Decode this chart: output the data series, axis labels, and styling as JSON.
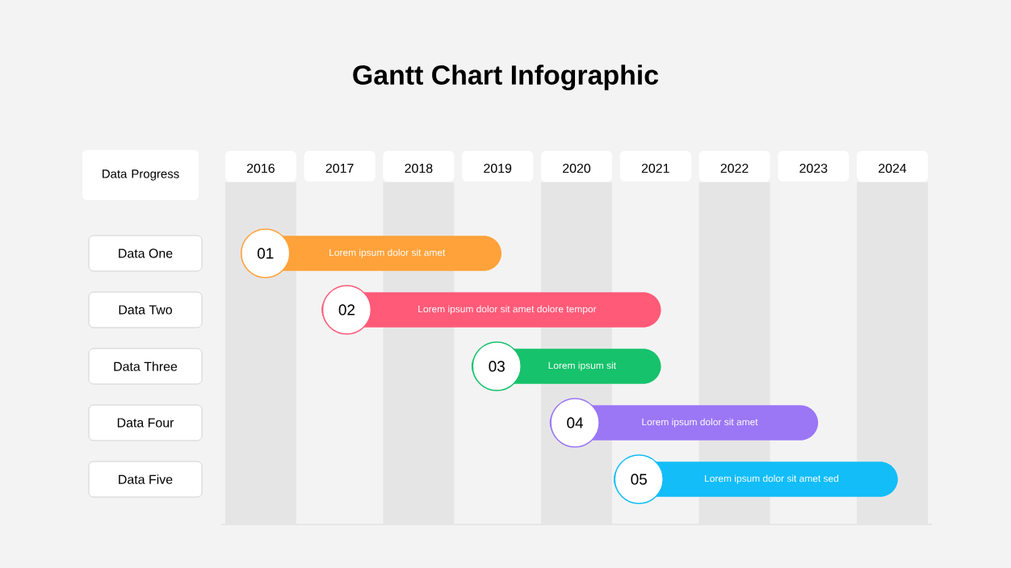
{
  "chart_data": {
    "type": "bar",
    "orientation": "horizontal",
    "title": "Gantt Chart Infographic",
    "ylabel": "Data Progress",
    "categories": [
      "Data One",
      "Data Two",
      "Data Three",
      "Data Four",
      "Data Five"
    ],
    "base": [
      2015.75,
      2016.77,
      2018.67,
      2019.66,
      2020.47
    ],
    "values": [
      3.3,
      4.3,
      2.4,
      3.4,
      3.6
    ],
    "colors": [
      "#ffa23a",
      "#ff5a78",
      "#16c26b",
      "#9b76f5",
      "#12bdf8"
    ],
    "xlim": [
      2015.5,
      2024.5
    ],
    "xticks": [
      2016,
      2017,
      2018,
      2019,
      2020,
      2021,
      2022,
      2023,
      2024
    ],
    "bands": [
      {
        "axis": "x",
        "from": 2015.55,
        "to": 2016.45,
        "color": "#e6e5e6"
      },
      {
        "axis": "x",
        "from": 2017.55,
        "to": 2018.45,
        "color": "#e6e5e6"
      },
      {
        "axis": "x",
        "from": 2019.55,
        "to": 2020.45,
        "color": "#e6e5e6"
      },
      {
        "axis": "x",
        "from": 2021.55,
        "to": 2022.45,
        "color": "#e6e5e6"
      },
      {
        "axis": "x",
        "from": 2023.55,
        "to": 2024.45,
        "color": "#e6e5e6"
      }
    ],
    "annotations": [
      {
        "text": "01",
        "x": 2016.06,
        "y": "Data One"
      },
      "Lorem ipsum dolor sit amet",
      {
        "text": "02",
        "x": 2017.09,
        "y": "Data Two"
      },
      "Lorem ipsum dolor sit amet dolore tempor",
      {
        "text": "03",
        "x": 2018.99,
        "y": "Data Three"
      },
      "Lorem ipsum sit",
      {
        "text": "04",
        "x": 2019.98,
        "y": "Data Four"
      },
      "Lorem ipsum dolor sit amet",
      {
        "text": "05",
        "x": 2020.79,
        "y": "Data Five"
      },
      "Lorem ipsum dolor sit amet sed"
    ]
  }
}
